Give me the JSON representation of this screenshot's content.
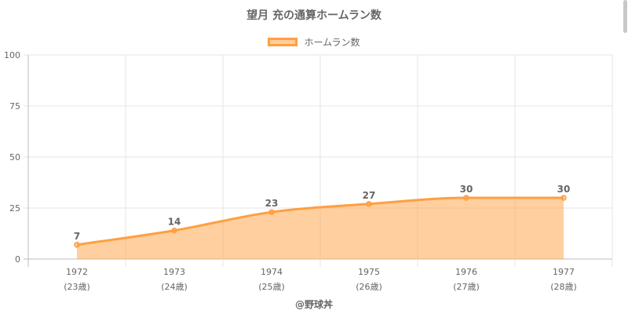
{
  "chart_data": {
    "type": "area",
    "title": "望月 充の通算ホームラン数",
    "categories": [
      "1972",
      "1973",
      "1974",
      "1975",
      "1976",
      "1977"
    ],
    "category_sublabels": [
      "(23歳)",
      "(24歳)",
      "(25歳)",
      "(26歳)",
      "(27歳)",
      "(28歳)"
    ],
    "series": [
      {
        "name": "ホームラン数",
        "values": [
          7,
          14,
          23,
          27,
          30,
          30
        ]
      }
    ],
    "ylim": [
      0,
      100
    ],
    "yticks": [
      0,
      25,
      50,
      75,
      100
    ],
    "grid": true,
    "legend_position": "top-center",
    "colors": {
      "line": "#ff9f40",
      "fill": "rgba(255,159,64,0.5)",
      "grid": "#e6e6e6",
      "text": "#666666"
    }
  },
  "footer": {
    "credit": "@野球丼"
  },
  "icons": {
    "scrollbar": "scrollbar-thumb"
  }
}
